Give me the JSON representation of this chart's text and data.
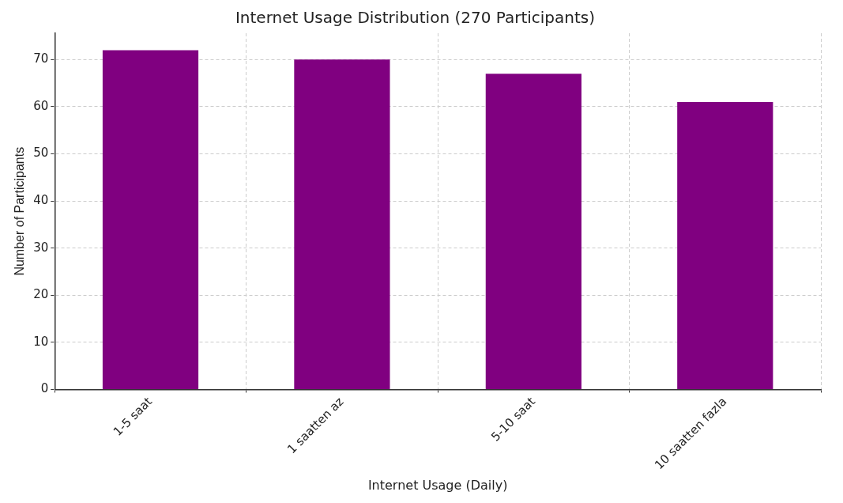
{
  "chart_data": {
    "type": "bar",
    "title": "Internet Usage Distribution (270 Participants)",
    "xlabel": "Internet Usage (Daily)",
    "ylabel": "Number of Participants",
    "categories": [
      "1-5 saat",
      "1 saatten az",
      "5-10 saat",
      "10 saatten fazla"
    ],
    "values": [
      72,
      70,
      67,
      61
    ],
    "color": "#800080",
    "ylim": [
      0,
      75.6
    ],
    "yticks": [
      0,
      10,
      20,
      30,
      40,
      50,
      60,
      70
    ],
    "grid": true
  }
}
